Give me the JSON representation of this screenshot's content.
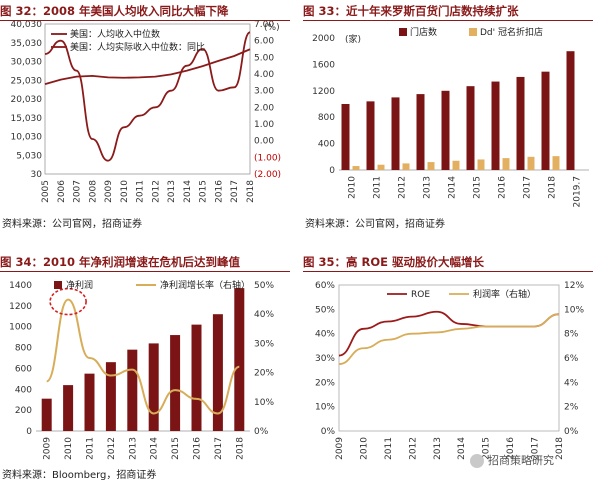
{
  "panels": [
    {
      "title": "图 32：2008 年美国人均收入同比大幅下降",
      "source": "资料来源：公司官网，招商证券",
      "chart_data": {
        "type": "line",
        "x": [
          "2005",
          "2006",
          "2007",
          "2008",
          "2009",
          "2010",
          "2011",
          "2012",
          "2013",
          "2014",
          "2015",
          "2016",
          "2017",
          "2018"
        ],
        "series": [
          {
            "name": "美国：人均收入中位数",
            "axis": "left",
            "color": "#8b1a1a",
            "values": [
              24000,
              25200,
              26000,
              26200,
              25800,
              25700,
              25800,
              26000,
              26600,
              27600,
              28800,
              30200,
              31500,
              33300
            ]
          },
          {
            "name": "美国：人均实际收入中位数：同比",
            "axis": "right",
            "color": "#8b1a1a",
            "values": [
              5.2,
              6.0,
              4.2,
              0.1,
              -1.2,
              0.8,
              1.5,
              2.0,
              3.0,
              4.5,
              5.5,
              3.0,
              3.2,
              6.5
            ]
          }
        ],
        "yleft": {
          "ticks": [
            "40,030",
            "35,030",
            "30,030",
            "25,030",
            "20,030",
            "15,030",
            "10,030",
            "5,030",
            "30"
          ],
          "min": 30,
          "max": 40030
        },
        "yright": {
          "ticks": [
            "7.00",
            "6.00",
            "5.00",
            "4.00",
            "3.00",
            "2.00",
            "1.00",
            "0.00",
            "(1.00)",
            "(2.00)"
          ],
          "min": -2,
          "max": 7
        },
        "ylabel_right": "(%)"
      }
    },
    {
      "title": "图 33：近十年来罗斯百货门店数持续扩张",
      "source": "资料来源：公司官网，招商证券",
      "chart_data": {
        "type": "bar",
        "categories": [
          "2010",
          "2011",
          "2012",
          "2013",
          "2014",
          "2015",
          "2016",
          "2017",
          "2018",
          "2019.7"
        ],
        "series": [
          {
            "name": "门店数",
            "color": "#7b1515",
            "values": [
              1000,
              1040,
              1100,
              1150,
              1200,
              1270,
              1340,
              1410,
              1490,
              1800
            ]
          },
          {
            "name": "Dd' 冠名折扣店",
            "color": "#e3b062",
            "values": [
              60,
              80,
              100,
              120,
              140,
              160,
              180,
              200,
              210,
              null
            ]
          }
        ],
        "ylabel": "(家)",
        "ylim": [
          0,
          2000
        ],
        "yticks": [
          "2000",
          "1600",
          "1200",
          "800",
          "400",
          "0"
        ]
      }
    },
    {
      "title": "图 34：2010 年净利润增速在危机后达到峰值",
      "source": "资料来源：Bloomberg，招商证券",
      "chart_data": {
        "type": "bar",
        "categories": [
          "2009",
          "2010",
          "2011",
          "2012",
          "2013",
          "2014",
          "2015",
          "2016",
          "2017",
          "2018"
        ],
        "series": [
          {
            "name": "净利润",
            "axis": "left",
            "color": "#7b1515",
            "values": [
              310,
              440,
              550,
              660,
              780,
              840,
              920,
              1020,
              1120,
              1370
            ]
          },
          {
            "name": "净利润增长率（右轴）",
            "axis": "right",
            "color": "#d8ad5a",
            "type": "line",
            "values": [
              17,
              45,
              25,
              19,
              21,
              6,
              14,
              11,
              6,
              22
            ]
          }
        ],
        "ylim_left": [
          0,
          1400
        ],
        "yticks_left": [
          "1400",
          "1200",
          "1000",
          "800",
          "600",
          "400",
          "200",
          "0"
        ],
        "ylim_right": [
          0,
          50
        ],
        "yticks_right": [
          "50%",
          "40%",
          "30%",
          "20%",
          "10%",
          "0%"
        ]
      }
    },
    {
      "title": "图 35：高 ROE 驱动股价大幅增长",
      "source": "",
      "chart_data": {
        "type": "line",
        "x": [
          "2009",
          "2010",
          "2011",
          "2012",
          "2013",
          "2014",
          "2015",
          "2016",
          "2017",
          "2018"
        ],
        "series": [
          {
            "name": "ROE",
            "axis": "left",
            "color": "#9c1a1a",
            "values": [
              31,
              42,
              45,
              47,
              49,
              44,
              43,
              43,
              43,
              48
            ]
          },
          {
            "name": "利润率（右轴）",
            "axis": "right",
            "color": "#d8ad5a",
            "values": [
              5.5,
              6.8,
              7.5,
              8.0,
              8.1,
              8.4,
              8.6,
              8.6,
              8.6,
              9.6
            ]
          }
        ],
        "ylim_left": [
          0,
          60
        ],
        "yticks_left": [
          "60%",
          "50%",
          "40%",
          "30%",
          "20%",
          "10%",
          "0%"
        ],
        "ylim_right": [
          0,
          12
        ],
        "yticks_right": [
          "12%",
          "10%",
          "8%",
          "6%",
          "4%",
          "2%",
          "0%"
        ]
      }
    }
  ],
  "watermark": "招商策略研究"
}
